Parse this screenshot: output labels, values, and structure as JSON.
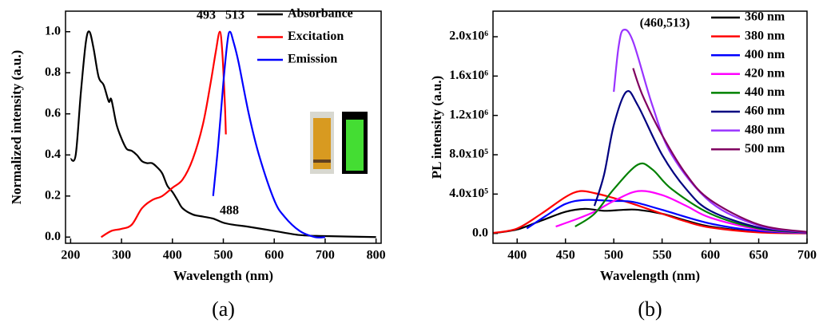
{
  "chart_data": [
    {
      "type": "line",
      "panel_label": "(a)",
      "x_label": "Wavelength (nm)",
      "y_label": "Normalized intensity (a.u.)",
      "xlim": [
        190,
        810
      ],
      "ylim": [
        -0.03,
        1.1
      ],
      "xticks": [
        200,
        300,
        400,
        500,
        600,
        700,
        800
      ],
      "yticks": [
        {
          "value": 0,
          "label": "0.0"
        },
        0.2,
        0.4,
        0.6,
        0.8,
        {
          "value": 1,
          "label": "1.0"
        }
      ],
      "legend": "upper right",
      "annotations": [
        "493",
        "513",
        "488"
      ],
      "series": [
        {
          "name": "Absorbance",
          "color": "#000000",
          "x": [
            200,
            210,
            220,
            230,
            237,
            245,
            255,
            265,
            275,
            280,
            290,
            300,
            310,
            320,
            330,
            340,
            350,
            360,
            370,
            380,
            390,
            400,
            410,
            420,
            440,
            460,
            480,
            500,
            520,
            550,
            600,
            650,
            700,
            800
          ],
          "values": [
            0.38,
            0.4,
            0.7,
            0.95,
            1.0,
            0.92,
            0.78,
            0.74,
            0.66,
            0.67,
            0.55,
            0.48,
            0.43,
            0.42,
            0.4,
            0.37,
            0.36,
            0.36,
            0.34,
            0.31,
            0.25,
            0.22,
            0.18,
            0.14,
            0.11,
            0.1,
            0.09,
            0.07,
            0.06,
            0.05,
            0.03,
            0.01,
            0.005,
            0.0
          ]
        },
        {
          "name": "Excitation",
          "color": "#ff0000",
          "x": [
            260,
            280,
            300,
            320,
            340,
            360,
            380,
            400,
            420,
            440,
            460,
            475,
            485,
            493,
            498,
            503,
            505
          ],
          "values": [
            0.0,
            0.03,
            0.04,
            0.06,
            0.14,
            0.18,
            0.2,
            0.24,
            0.28,
            0.38,
            0.55,
            0.75,
            0.9,
            1.0,
            0.9,
            0.65,
            0.5
          ]
        },
        {
          "name": "Emission",
          "color": "#0000ff",
          "x": [
            480,
            490,
            500,
            508,
            513,
            520,
            530,
            550,
            570,
            600,
            620,
            650,
            680,
            700
          ],
          "values": [
            0.2,
            0.45,
            0.75,
            0.95,
            1.0,
            0.95,
            0.85,
            0.6,
            0.4,
            0.18,
            0.1,
            0.03,
            0.0,
            0.0
          ]
        }
      ]
    },
    {
      "type": "line",
      "panel_label": "(b)",
      "x_label": "Wavelength (nm)",
      "y_label": "PL intensity (a.u.)",
      "xlim": [
        375,
        700
      ],
      "ylim": [
        -100000,
        2260000
      ],
      "xticks": [
        400,
        450,
        500,
        550,
        600,
        650,
        700
      ],
      "yticks": [
        {
          "value": 0,
          "label": "0.0"
        },
        {
          "value": 400000,
          "label": "4.0x10⁵"
        },
        {
          "value": 800000,
          "label": "8.0x10⁵"
        },
        {
          "value": 1200000,
          "label": "1.2x10⁶"
        },
        {
          "value": 1600000,
          "label": "1.6x10⁶"
        },
        {
          "value": 2000000,
          "label": "2.0x10⁶"
        }
      ],
      "legend": "upper right",
      "annotations": [
        "(460,513)"
      ],
      "series": [
        {
          "name": "360 nm",
          "color": "#000000",
          "x": [
            375,
            400,
            425,
            450,
            470,
            490,
            510,
            525,
            550,
            575,
            600,
            650,
            700
          ],
          "values": [
            2000,
            40000,
            130000,
            220000,
            250000,
            230000,
            240000,
            240000,
            200000,
            130000,
            70000,
            15000,
            2000
          ]
        },
        {
          "name": "380 nm",
          "color": "#ff0000",
          "x": [
            375,
            400,
            425,
            450,
            465,
            480,
            500,
            520,
            550,
            575,
            600,
            650,
            700
          ],
          "values": [
            5000,
            50000,
            200000,
            370000,
            430000,
            410000,
            360000,
            300000,
            200000,
            120000,
            60000,
            10000,
            0
          ]
        },
        {
          "name": "400 nm",
          "color": "#0000ff",
          "x": [
            410,
            430,
            450,
            470,
            500,
            520,
            550,
            600,
            650,
            700
          ],
          "values": [
            50000,
            180000,
            300000,
            340000,
            330000,
            320000,
            240000,
            100000,
            25000,
            3000
          ]
        },
        {
          "name": "420 nm",
          "color": "#ff00ff",
          "x": [
            440,
            460,
            480,
            500,
            525,
            550,
            575,
            600,
            650,
            700
          ],
          "values": [
            70000,
            140000,
            220000,
            330000,
            430000,
            390000,
            280000,
            160000,
            40000,
            5000
          ]
        },
        {
          "name": "440 nm",
          "color": "#008000",
          "x": [
            460,
            480,
            500,
            525,
            540,
            560,
            600,
            650,
            700
          ],
          "values": [
            70000,
            200000,
            450000,
            700000,
            650000,
            450000,
            200000,
            50000,
            8000
          ]
        },
        {
          "name": "460 nm",
          "color": "#000080",
          "x": [
            480,
            490,
            500,
            513,
            525,
            550,
            575,
            600,
            650,
            700
          ],
          "values": [
            280000,
            600000,
            1100000,
            1440000,
            1300000,
            800000,
            450000,
            230000,
            60000,
            10000
          ]
        },
        {
          "name": "480 nm",
          "color": "#9933ff",
          "x": [
            500,
            505,
            510,
            520,
            540,
            560,
            600,
            650,
            700
          ],
          "values": [
            1440000,
            1900000,
            2070000,
            1950000,
            1300000,
            800000,
            320000,
            80000,
            12000
          ]
        },
        {
          "name": "500 nm",
          "color": "#800060",
          "x": [
            520,
            530,
            550,
            575,
            600,
            650,
            700
          ],
          "values": [
            1680000,
            1400000,
            1000000,
            600000,
            340000,
            90000,
            15000
          ]
        }
      ]
    }
  ]
}
